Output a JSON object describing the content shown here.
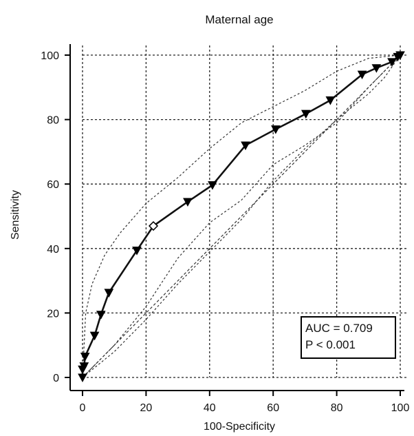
{
  "chart_data": {
    "type": "line",
    "title": "Maternal age",
    "xlabel": "100-Specificity",
    "ylabel": "Sensitivity",
    "xlim": [
      0,
      100
    ],
    "ylim": [
      0,
      100
    ],
    "x_ticks": [
      0,
      20,
      40,
      60,
      80,
      100
    ],
    "y_ticks": [
      0,
      20,
      40,
      60,
      80,
      100
    ],
    "grid": true,
    "series": [
      {
        "kind": "roc",
        "x": [
          0,
          0,
          0.5,
          0.8,
          3.8,
          5.8,
          8.3,
          17.1,
          22.3,
          33.1,
          40.9,
          51.3,
          60.8,
          70.3,
          78.0,
          88.0,
          92.5,
          97.4,
          99.2,
          100
        ],
        "y": [
          0,
          2.5,
          3.5,
          6.5,
          13.0,
          19.5,
          26.3,
          39.4,
          47.0,
          54.5,
          59.7,
          72.0,
          77.0,
          81.8,
          86.0,
          94.0,
          96.0,
          97.9,
          99.5,
          100
        ],
        "highlight_index": 8
      },
      {
        "kind": "ci-upper",
        "x": [
          0,
          1,
          3,
          7,
          12,
          20,
          30,
          40,
          50,
          60,
          70,
          80,
          90,
          100
        ],
        "y": [
          0,
          20,
          29,
          38,
          45,
          54,
          62,
          71,
          79,
          84,
          89,
          95,
          99,
          100
        ]
      },
      {
        "kind": "ci-lower",
        "x": [
          0,
          10,
          20,
          30,
          40,
          50,
          60,
          70,
          80,
          90,
          95,
          100
        ],
        "y": [
          0,
          8,
          18,
          29,
          39,
          49,
          61,
          71,
          80,
          88,
          93,
          100
        ]
      },
      {
        "kind": "ci-mid",
        "x": [
          0,
          10,
          20,
          30,
          40,
          50,
          60,
          70,
          80,
          90,
          100
        ],
        "y": [
          0,
          10,
          22,
          37,
          48,
          55,
          66,
          72,
          79,
          90,
          100
        ]
      },
      {
        "kind": "reference",
        "x": [
          0,
          100
        ],
        "y": [
          0,
          100
        ]
      }
    ],
    "annotation": {
      "line1": "AUC = 0.709",
      "line2": "P < 0.001"
    }
  }
}
